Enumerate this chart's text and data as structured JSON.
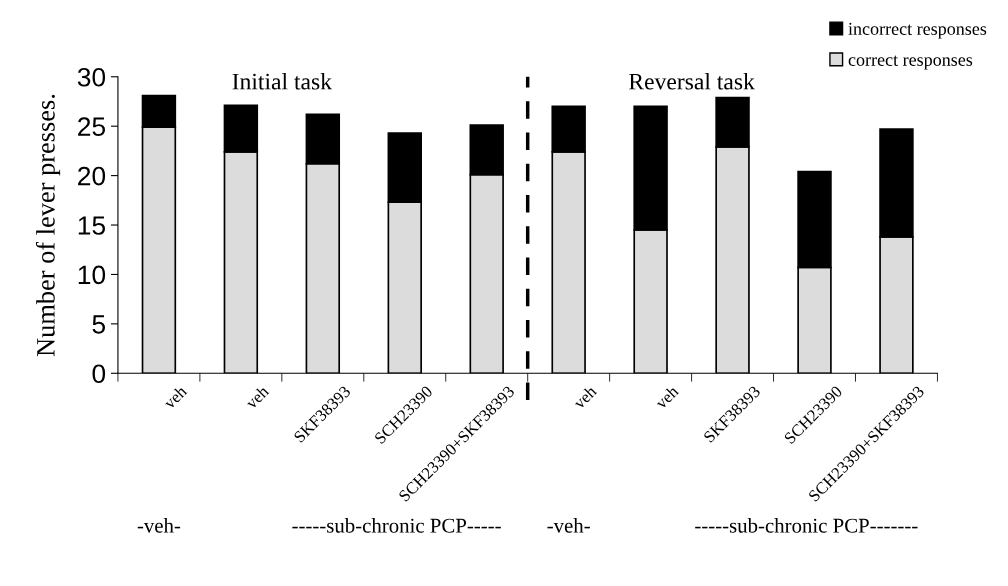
{
  "chart_data": {
    "type": "bar",
    "stacked": true,
    "ylabel": "Number of lever presses.",
    "categories": [
      "veh",
      "veh",
      "SKF38393",
      "SCH23390",
      "SCH23390+SKF38393",
      "veh",
      "veh",
      "SKF38393",
      "SCH23390",
      "SCH23390+SKF38393"
    ],
    "series": [
      {
        "name": "correct responses",
        "color": "#dcdcdc",
        "values": [
          24.9,
          22.4,
          21.2,
          17.3,
          20.1,
          22.4,
          14.5,
          22.9,
          10.7,
          13.8
        ]
      },
      {
        "name": "incorrect responses",
        "color": "#000000",
        "values": [
          3.2,
          4.7,
          5.0,
          7.0,
          5.0,
          4.6,
          12.5,
          5.0,
          9.7,
          10.9
        ]
      }
    ],
    "ylim": [
      0,
      30
    ],
    "yticks": [
      0,
      5,
      10,
      15,
      20,
      25,
      30
    ],
    "annotations": [
      "Initial task",
      "Reversal task",
      "-veh-",
      "-----sub-chronic PCP-----",
      "-veh-",
      "-----sub-chronic PCP-------"
    ],
    "legend": "top right"
  }
}
